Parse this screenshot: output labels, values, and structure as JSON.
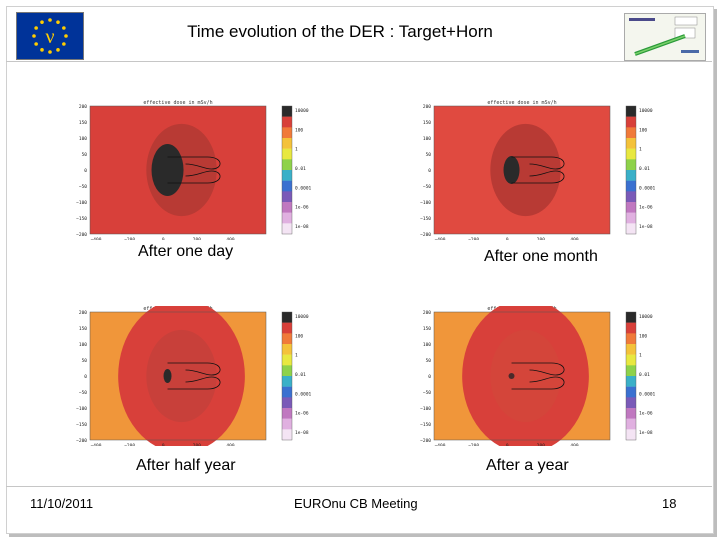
{
  "slide": {
    "title": "Time evolution of the DER : Target+Horn",
    "footer": {
      "date": "11/10/2011",
      "meeting": "EUROnu CB Meeting",
      "page": "18"
    },
    "logo_letter": "ν",
    "colors": {
      "eu_blue": "#003399",
      "eu_star": "#ffcc00"
    }
  },
  "plots": [
    {
      "caption": "After one day",
      "plot_title": "effective dose in mSv/h",
      "background": "#d8403a",
      "mid": "#b83a34",
      "core": "#2a2a2a",
      "core_size": "large"
    },
    {
      "caption": "After one month",
      "plot_title": "effective dose in mSv/h",
      "background": "#e04a40",
      "mid": "#b83a34",
      "core": "#2a2a2a",
      "core_size": "medium"
    },
    {
      "caption": "After half year",
      "plot_title": "effective dose in mSv/h",
      "background": "#f0963a",
      "mid": "#c8403a",
      "core": "#2a2a2a",
      "core_size": "small"
    },
    {
      "caption": "After a year",
      "plot_title": "effective dose in mSv/h",
      "background": "#f0963a",
      "mid": "#d4453a",
      "core": "#4a2a2a",
      "core_size": "tiny"
    }
  ],
  "axes": {
    "y_ticks": [
      "200",
      "150",
      "100",
      "50",
      "0",
      "−50",
      "−100",
      "−150",
      "−200"
    ],
    "x_ticks": [
      "−400",
      "−200",
      "0",
      "200",
      "400"
    ]
  },
  "colorbar": {
    "labels": [
      "10000",
      "100",
      "1",
      "0.01",
      "0.0001",
      "1e-06",
      "1e-08"
    ],
    "colors": [
      "#2a2a2a",
      "#d8403a",
      "#f07a3a",
      "#f4c23a",
      "#e8e840",
      "#8ed24a",
      "#3ab0c8",
      "#3a70d0",
      "#7a5ab8",
      "#c078c0",
      "#e0b0e0",
      "#f4e4f4"
    ]
  }
}
